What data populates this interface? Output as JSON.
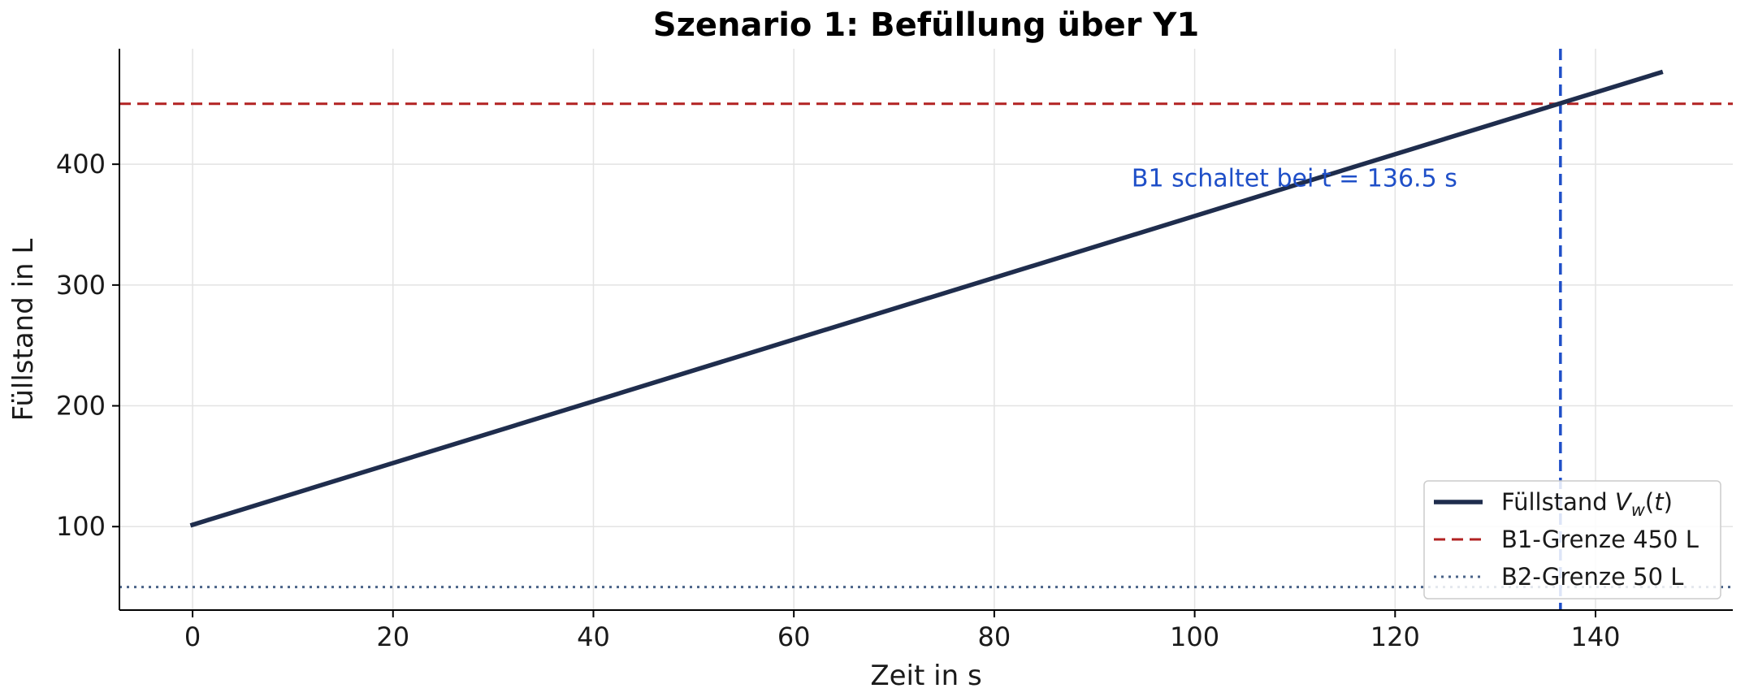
{
  "chart_data": {
    "type": "line",
    "title": "Szenario 1: Befüllung über Y1",
    "xlabel": "Zeit in s",
    "ylabel": "Füllstand in L",
    "xlim": [
      -7.3,
      153.7
    ],
    "ylim": [
      30.9,
      495.6
    ],
    "xticks": [
      0,
      20,
      40,
      60,
      80,
      100,
      120,
      140
    ],
    "yticks": [
      100,
      200,
      300,
      400
    ],
    "grid": true,
    "series": [
      {
        "name": "Füllstand V_w(t)",
        "style": "solid",
        "color": "#1f2d4d",
        "x": [
          0,
          146.5
        ],
        "y": [
          101.5,
          476.0
        ]
      }
    ],
    "hlines": [
      {
        "y": 450,
        "name": "B1-Grenze 450 L",
        "style": "dashed",
        "color": "#b22222"
      },
      {
        "y": 50,
        "name": "B2-Grenze 50 L",
        "style": "dotted",
        "color": "#4a6388"
      }
    ],
    "vlines": [
      {
        "x": 136.5,
        "style": "dashed",
        "color": "#1f4fc8"
      }
    ],
    "annotations": [
      {
        "text": "B1 schaltet bei t = 136.5 s",
        "x": 93.7,
        "y": 389,
        "color": "#1f4fc8"
      }
    ],
    "legend": {
      "position": "lower-right",
      "entries": [
        {
          "label": "Füllstand ",
          "math": "V",
          "sub": "w",
          "tail": "(t)",
          "style": "solid",
          "color": "#1f2d4d"
        },
        {
          "label": "B1-Grenze 450 L",
          "style": "dashed",
          "color": "#b22222"
        },
        {
          "label": "B2-Grenze 50 L",
          "style": "dotted",
          "color": "#4a6388"
        }
      ]
    }
  }
}
